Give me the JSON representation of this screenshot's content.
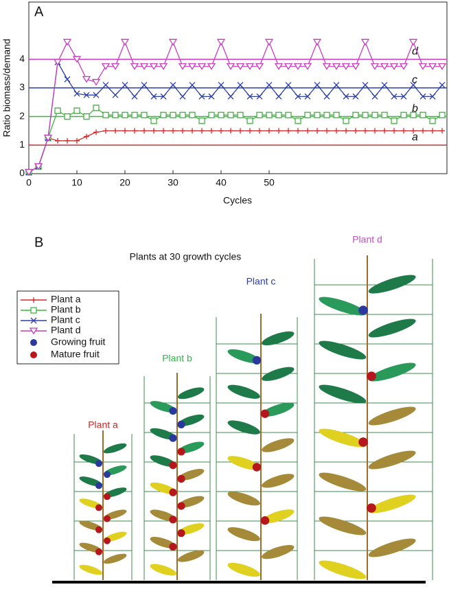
{
  "chart_data": {
    "type": "line",
    "panel": "A",
    "xlabel": "Cycles",
    "ylabel": "Ratio biomass/demand",
    "x": [
      0,
      2,
      4,
      6,
      8,
      10,
      12,
      14,
      16,
      18,
      20,
      22,
      24,
      26,
      28,
      30,
      32,
      34,
      36,
      38,
      40,
      42,
      44,
      46,
      48,
      50,
      52,
      54,
      56,
      58,
      60,
      62,
      64,
      66,
      68,
      70,
      72,
      74,
      76,
      78,
      80,
      82,
      84,
      86
    ],
    "xlim": [
      0,
      87
    ],
    "ylim": [
      0,
      6
    ],
    "xticks": [
      0,
      10,
      20,
      30,
      40,
      50
    ],
    "yticks": [
      0,
      1,
      2,
      3,
      4
    ],
    "series": [
      {
        "name": "Plant a",
        "label": "a",
        "ref": 1,
        "color": "#d62728",
        "marker": "plus",
        "values": [
          0.05,
          0.25,
          1.25,
          1.15,
          1.15,
          1.15,
          1.3,
          1.45,
          1.5,
          1.5,
          1.5,
          1.5,
          1.5,
          1.5,
          1.5,
          1.5,
          1.5,
          1.5,
          1.5,
          1.5,
          1.5,
          1.5,
          1.5,
          1.5,
          1.5,
          1.5,
          1.5,
          1.5,
          1.5,
          1.5,
          1.5,
          1.5,
          1.5,
          1.5,
          1.5,
          1.5,
          1.5,
          1.5,
          1.5,
          1.5,
          1.5,
          1.5,
          1.5,
          1.5
        ]
      },
      {
        "name": "Plant b",
        "label": "b",
        "ref": 2,
        "color": "#3cb83c",
        "marker": "square",
        "values": [
          0.05,
          0.25,
          1.25,
          2.2,
          2.0,
          2.2,
          2.0,
          2.3,
          2.05,
          2.05,
          2.05,
          2.05,
          2.05,
          1.85,
          2.05,
          2.05,
          2.05,
          2.05,
          1.85,
          2.05,
          2.05,
          2.05,
          2.05,
          1.85,
          2.05,
          2.05,
          2.05,
          2.05,
          1.85,
          2.05,
          2.05,
          2.05,
          2.05,
          1.85,
          2.05,
          2.05,
          2.05,
          2.05,
          1.85,
          2.05,
          2.05,
          2.05,
          1.85,
          2.05
        ]
      },
      {
        "name": "Plant c",
        "label": "c",
        "ref": 3,
        "color": "#2b3ea8",
        "marker": "cross",
        "values": [
          0.05,
          0.25,
          1.25,
          3.9,
          3.3,
          2.8,
          2.75,
          2.75,
          3.1,
          2.75,
          3.1,
          2.7,
          3.1,
          2.7,
          2.7,
          3.1,
          2.7,
          3.1,
          2.7,
          2.7,
          3.1,
          2.7,
          3.1,
          2.7,
          2.7,
          3.1,
          2.7,
          3.1,
          2.7,
          2.7,
          3.1,
          2.7,
          3.1,
          2.7,
          2.7,
          3.1,
          2.7,
          3.1,
          2.7,
          2.7,
          3.1,
          2.7,
          2.7,
          3.1
        ]
      },
      {
        "name": "Plant d",
        "label": "d",
        "ref": 4,
        "color": "#c83cc0",
        "marker": "triangle",
        "values": [
          0.05,
          0.25,
          1.25,
          3.9,
          4.6,
          4.0,
          3.3,
          3.2,
          3.75,
          3.75,
          4.6,
          3.75,
          3.75,
          3.75,
          3.75,
          4.6,
          3.75,
          3.75,
          3.75,
          3.75,
          4.6,
          3.75,
          3.75,
          3.75,
          3.75,
          4.6,
          3.75,
          3.75,
          3.75,
          3.75,
          4.6,
          3.75,
          3.75,
          3.75,
          3.75,
          4.6,
          3.75,
          3.75,
          3.75,
          3.75,
          4.6,
          3.75,
          3.75,
          3.75
        ]
      }
    ],
    "extra_legend": [
      {
        "name": "Growing fruit",
        "color": "#2a3a9c"
      },
      {
        "name": "Mature fruit",
        "color": "#b5171c"
      }
    ]
  },
  "panel_b": {
    "panel": "B",
    "caption": "Plants at 30 growth cycles",
    "plants": [
      "Plant a",
      "Plant b",
      "Plant c",
      "Plant d"
    ]
  }
}
